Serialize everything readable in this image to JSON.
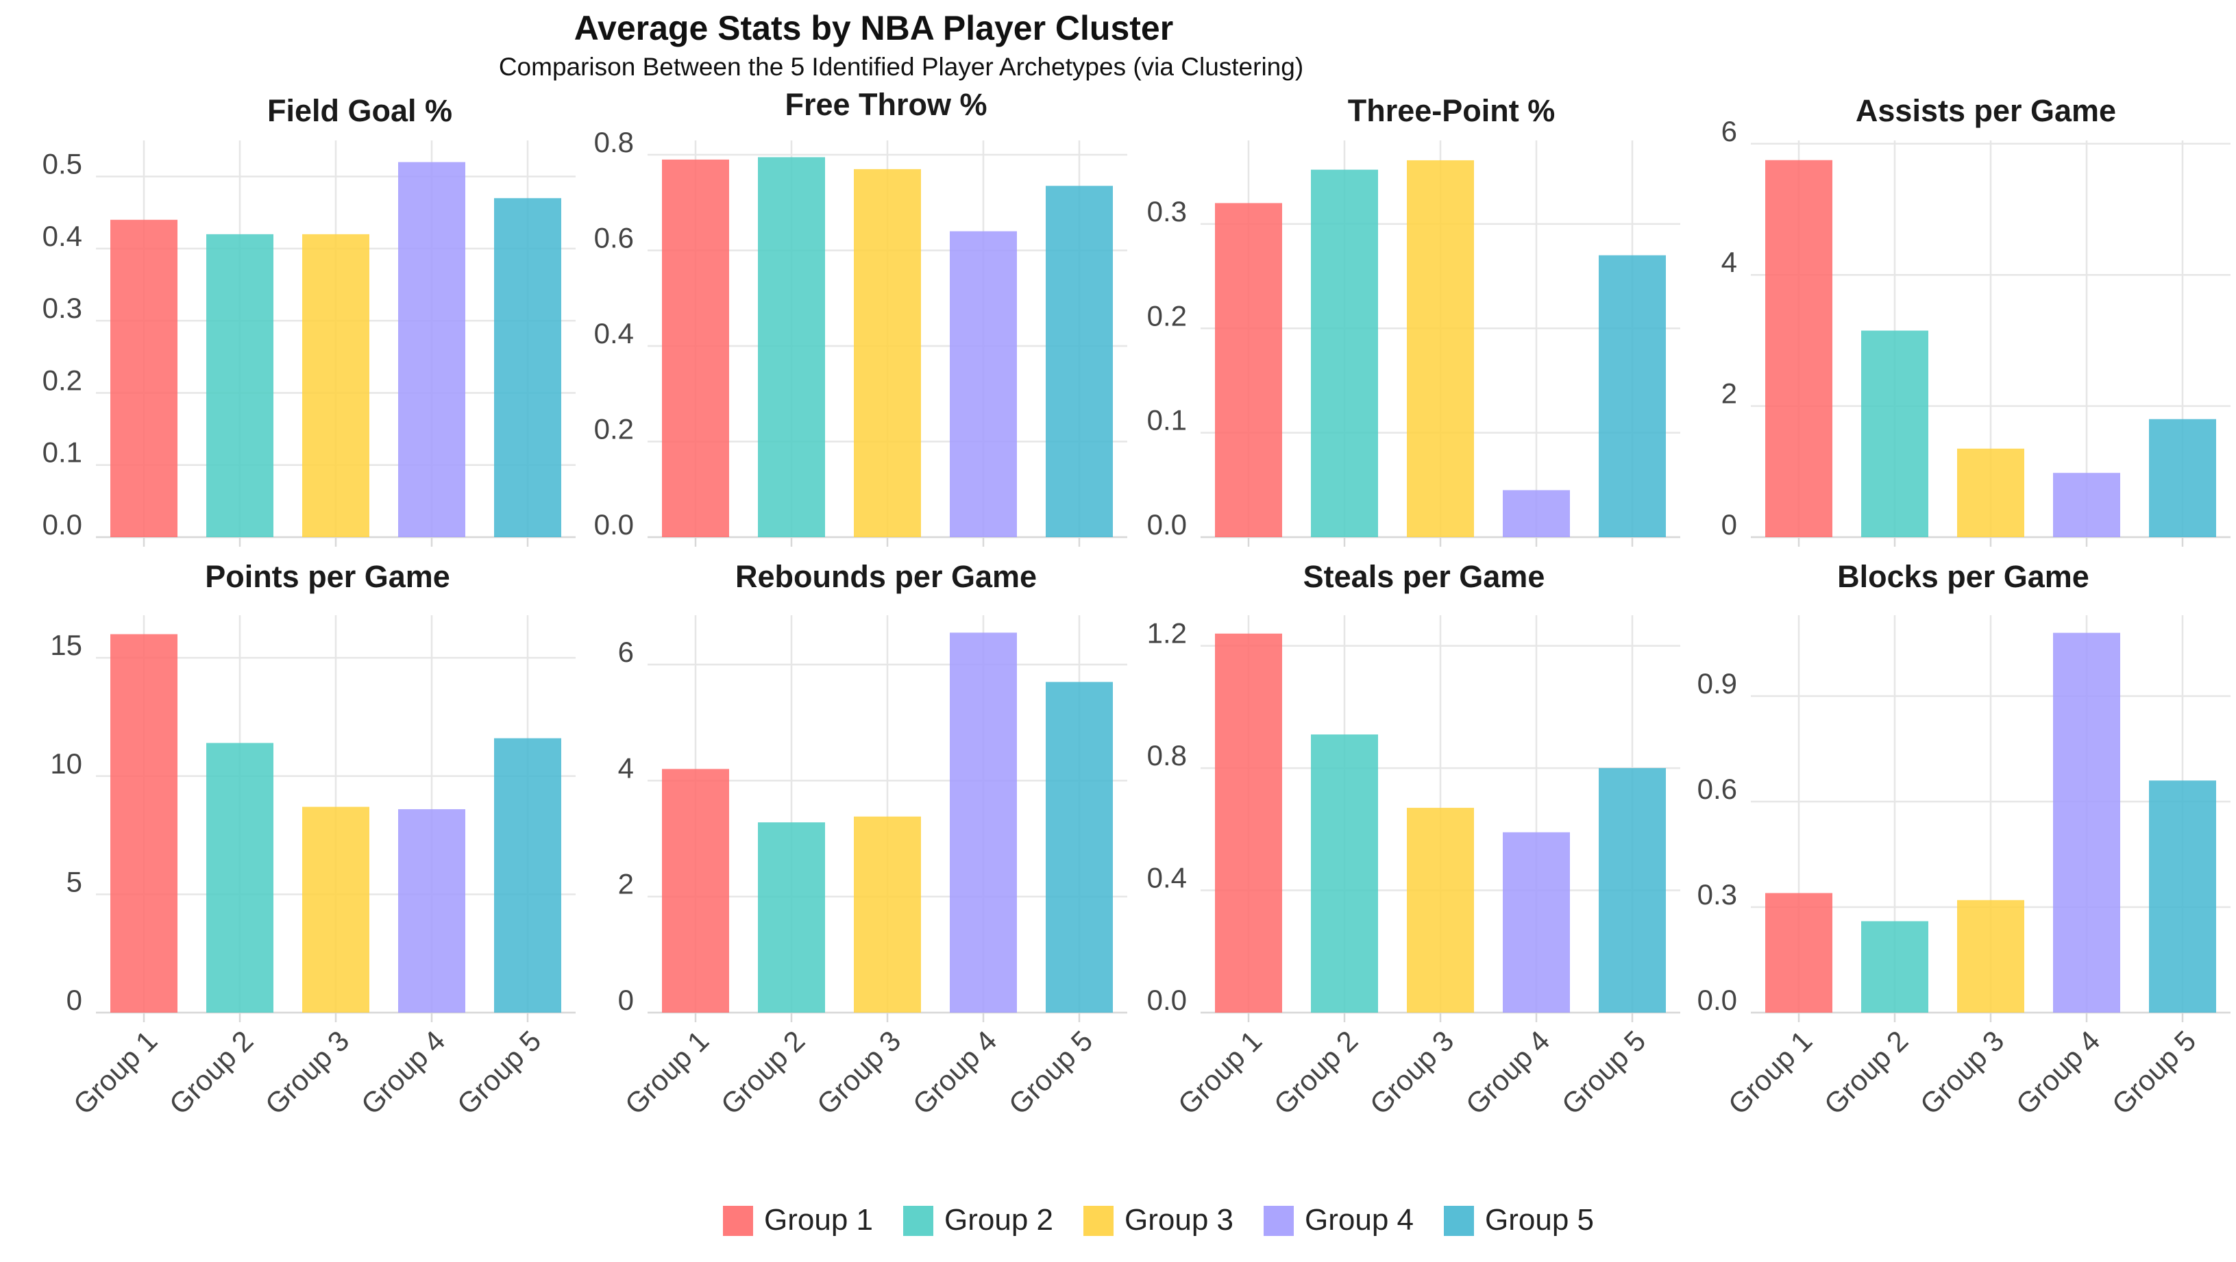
{
  "title": "Average Stats by NBA Player Cluster",
  "subtitle": "Comparison Between the 5 Identified Player Archetypes (via Clustering)",
  "legend": {
    "position": "bottom",
    "items": [
      {
        "label": "Group 1",
        "color": "#ff6b6b"
      },
      {
        "label": "Group 2",
        "color": "#4ecdc4"
      },
      {
        "label": "Group 3",
        "color": "#ffd23f"
      },
      {
        "label": "Group 4",
        "color": "#a29bfe"
      },
      {
        "label": "Group 5",
        "color": "#45b7d1"
      }
    ]
  },
  "chart_data": [
    {
      "type": "bar",
      "title": "Field Goal %",
      "categories": [
        "Group 1",
        "Group 2",
        "Group 3",
        "Group 4",
        "Group 5"
      ],
      "values": [
        0.44,
        0.42,
        0.42,
        0.52,
        0.47
      ],
      "yticks": [
        "0.0",
        "0.1",
        "0.2",
        "0.3",
        "0.4",
        "0.5"
      ],
      "ylim": [
        0,
        0.55
      ],
      "grid": true
    },
    {
      "type": "bar",
      "title": "Free Throw %",
      "categories": [
        "Group 1",
        "Group 2",
        "Group 3",
        "Group 4",
        "Group 5"
      ],
      "values": [
        0.79,
        0.795,
        0.77,
        0.64,
        0.735
      ],
      "yticks": [
        "0.0",
        "0.2",
        "0.4",
        "0.6",
        "0.8"
      ],
      "ylim": [
        0,
        0.83
      ],
      "grid": true
    },
    {
      "type": "bar",
      "title": "Three-Point %",
      "categories": [
        "Group 1",
        "Group 2",
        "Group 3",
        "Group 4",
        "Group 5"
      ],
      "values": [
        0.32,
        0.352,
        0.361,
        0.045,
        0.27
      ],
      "yticks": [
        "0.0",
        "0.1",
        "0.2",
        "0.3"
      ],
      "ylim": [
        0,
        0.38
      ],
      "grid": true
    },
    {
      "type": "bar",
      "title": "Assists per Game",
      "categories": [
        "Group 1",
        "Group 2",
        "Group 3",
        "Group 4",
        "Group 5"
      ],
      "values": [
        5.75,
        3.15,
        1.35,
        0.98,
        1.8
      ],
      "yticks": [
        "0",
        "2",
        "4",
        "6"
      ],
      "ylim": [
        0,
        6.05
      ],
      "grid": true
    },
    {
      "type": "bar",
      "title": "Points per Game",
      "categories": [
        "Group 1",
        "Group 2",
        "Group 3",
        "Group 4",
        "Group 5"
      ],
      "values": [
        16.0,
        11.4,
        8.7,
        8.6,
        11.6
      ],
      "yticks": [
        "0",
        "5",
        "10",
        "15"
      ],
      "ylim": [
        0,
        16.8
      ],
      "grid": true
    },
    {
      "type": "bar",
      "title": "Rebounds per Game",
      "categories": [
        "Group 1",
        "Group 2",
        "Group 3",
        "Group 4",
        "Group 5"
      ],
      "values": [
        4.2,
        3.28,
        3.38,
        6.55,
        5.7
      ],
      "yticks": [
        "0",
        "2",
        "4",
        "6"
      ],
      "ylim": [
        0,
        6.85
      ],
      "grid": true
    },
    {
      "type": "bar",
      "title": "Steals per Game",
      "categories": [
        "Group 1",
        "Group 2",
        "Group 3",
        "Group 4",
        "Group 5"
      ],
      "values": [
        1.24,
        0.91,
        0.67,
        0.59,
        0.8
      ],
      "yticks": [
        "0.0",
        "0.4",
        "0.8",
        "1.2"
      ],
      "ylim": [
        0,
        1.3
      ],
      "grid": true
    },
    {
      "type": "bar",
      "title": "Blocks per Game",
      "categories": [
        "Group 1",
        "Group 2",
        "Group 3",
        "Group 4",
        "Group 5"
      ],
      "values": [
        0.34,
        0.26,
        0.32,
        1.08,
        0.66
      ],
      "yticks": [
        "0.0",
        "0.3",
        "0.6",
        "0.9"
      ],
      "ylim": [
        0,
        1.13
      ],
      "grid": true
    }
  ]
}
